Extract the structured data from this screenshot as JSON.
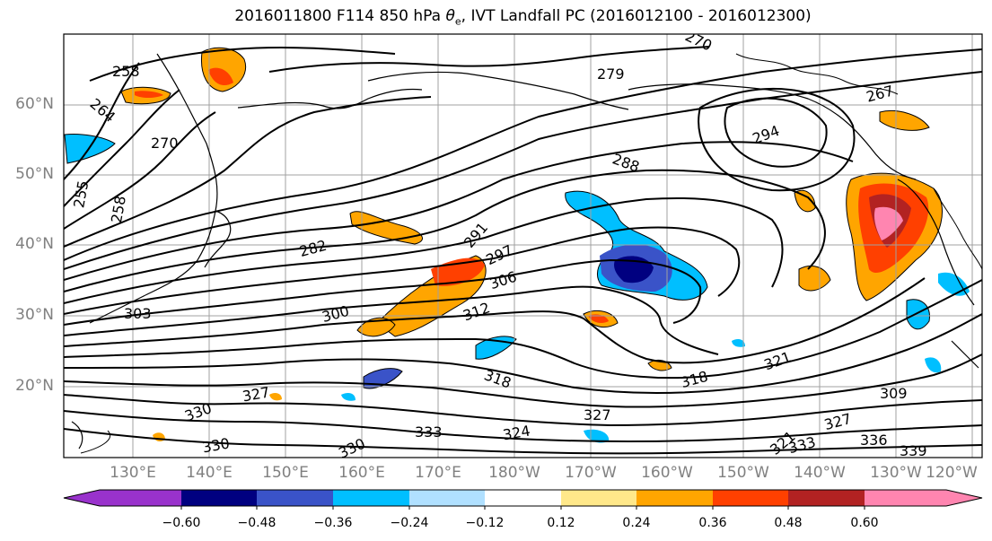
{
  "title_main": "2016011800 F114 850 hPa ",
  "title_symbol": "θ",
  "title_sub": "e",
  "title_rest": ", IVT Landfall PC (2016012100 - 2016012300)",
  "lat_labels": [
    "60°N",
    "50°N",
    "40°N",
    "30°N",
    "20°N"
  ],
  "lon_labels": [
    "130°E",
    "140°E",
    "150°E",
    "160°E",
    "170°E",
    "180°W",
    "170°W",
    "160°W",
    "150°W",
    "140°W",
    "130°W",
    "120°W"
  ],
  "colorbar": {
    "colors": [
      "#9932cc",
      "#000080",
      "#3a53c8",
      "#00bfff",
      "#b0e0ff",
      "#ffffff",
      "#ffe88a",
      "#ffa500",
      "#ff4000",
      "#b22222",
      "#ff85b0"
    ],
    "tick_labels": [
      "−0.60",
      "−0.48",
      "−0.36",
      "−0.24",
      "−0.12",
      "0.12",
      "0.24",
      "0.36",
      "0.48",
      "0.60"
    ]
  },
  "contour_labels": [
    {
      "text": "258"
    },
    {
      "text": "264"
    },
    {
      "text": "270"
    },
    {
      "text": "255"
    },
    {
      "text": "258"
    },
    {
      "text": "282"
    },
    {
      "text": "291"
    },
    {
      "text": "297"
    },
    {
      "text": "306"
    },
    {
      "text": "300"
    },
    {
      "text": "312"
    },
    {
      "text": "303"
    },
    {
      "text": "294"
    },
    {
      "text": "288"
    },
    {
      "text": "279"
    },
    {
      "text": "270"
    },
    {
      "text": "267"
    },
    {
      "text": "318"
    },
    {
      "text": "321"
    },
    {
      "text": "327"
    },
    {
      "text": "330"
    },
    {
      "text": "330"
    },
    {
      "text": "333"
    },
    {
      "text": "330"
    },
    {
      "text": "327"
    },
    {
      "text": "309"
    },
    {
      "text": "327"
    },
    {
      "text": "336"
    },
    {
      "text": "339"
    },
    {
      "text": "321"
    },
    {
      "text": "333"
    },
    {
      "text": "318"
    },
    {
      "text": "324"
    }
  ]
}
